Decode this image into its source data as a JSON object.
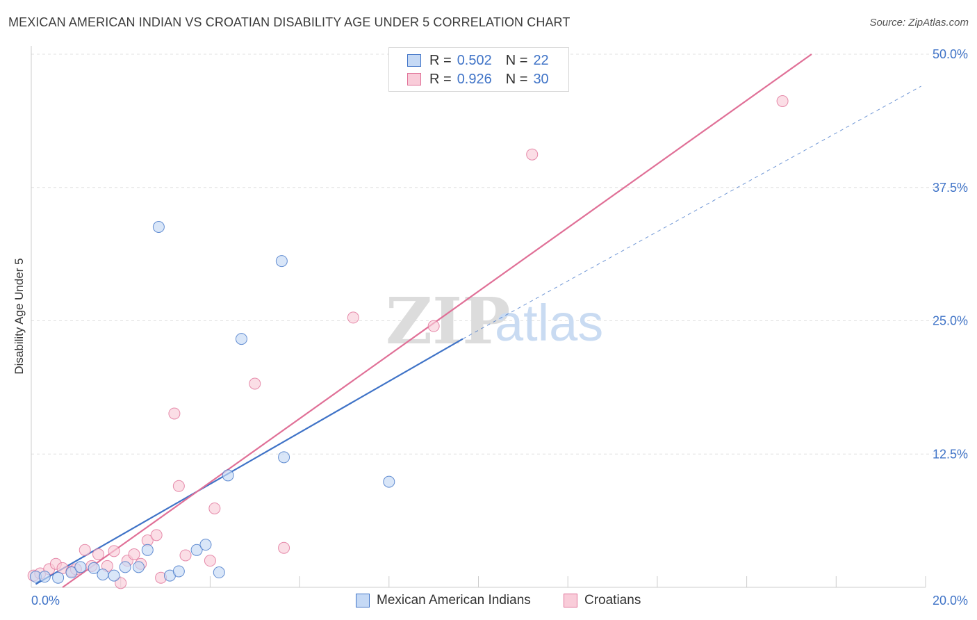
{
  "title": "MEXICAN AMERICAN INDIAN VS CROATIAN DISABILITY AGE UNDER 5 CORRELATION CHART",
  "source": "Source: ZipAtlas.com",
  "watermark": {
    "zip": "ZIP",
    "atlas": "atlas"
  },
  "colors": {
    "blue": "#3f73c7",
    "pink": "#e07097",
    "blue_fill": "#c5d9f5",
    "pink_fill": "#f9ccd9"
  },
  "legend_stats": {
    "rows": [
      {
        "r_label": "R =",
        "r_value": "0.502",
        "n_label": "N =",
        "n_value": "22"
      },
      {
        "r_label": "R =",
        "r_value": "0.926",
        "n_label": "N =",
        "n_value": "30"
      }
    ]
  },
  "legend": {
    "series_a": "Mexican American Indians",
    "series_b": "Croatians"
  },
  "chart_data": {
    "type": "scatter",
    "title": "MEXICAN AMERICAN INDIAN VS CROATIAN DISABILITY AGE UNDER 5 CORRELATION CHART",
    "xlabel": "",
    "ylabel": "Disability Age Under 5",
    "xlim": [
      0,
      20
    ],
    "ylim": [
      0,
      50
    ],
    "x_tick_labels": [
      "0.0%",
      "20.0%"
    ],
    "y_ticks": [
      12.5,
      25.0,
      37.5,
      50.0
    ],
    "y_tick_labels": [
      "12.5%",
      "25.0%",
      "37.5%",
      "50.0%"
    ],
    "series": [
      {
        "name": "Mexican American Indians",
        "r": 0.502,
        "n": 22,
        "points": [
          [
            0.1,
            1.0
          ],
          [
            0.3,
            1.0
          ],
          [
            0.6,
            0.9
          ],
          [
            0.9,
            1.4
          ],
          [
            1.1,
            1.9
          ],
          [
            1.4,
            1.8
          ],
          [
            1.6,
            1.2
          ],
          [
            1.85,
            1.1
          ],
          [
            2.1,
            1.9
          ],
          [
            2.4,
            1.9
          ],
          [
            2.6,
            3.5
          ],
          [
            2.85,
            33.8
          ],
          [
            3.1,
            1.1
          ],
          [
            3.3,
            1.5
          ],
          [
            3.7,
            3.5
          ],
          [
            3.9,
            4.0
          ],
          [
            4.2,
            1.4
          ],
          [
            4.4,
            10.5
          ],
          [
            4.7,
            23.3
          ],
          [
            5.6,
            30.6
          ],
          [
            5.65,
            12.2
          ],
          [
            8.0,
            9.9
          ]
        ],
        "trend_solid": [
          [
            0.1,
            0.3
          ],
          [
            9.65,
            23.3
          ]
        ],
        "trend_dashed": [
          [
            9.65,
            23.3
          ],
          [
            19.9,
            47.0
          ]
        ]
      },
      {
        "name": "Croatians",
        "r": 0.926,
        "n": 30,
        "points": [
          [
            0.05,
            1.1
          ],
          [
            0.2,
            1.3
          ],
          [
            0.4,
            1.7
          ],
          [
            0.55,
            2.2
          ],
          [
            0.7,
            1.8
          ],
          [
            0.9,
            1.5
          ],
          [
            1.0,
            1.7
          ],
          [
            1.2,
            3.5
          ],
          [
            1.35,
            2.0
          ],
          [
            1.5,
            3.1
          ],
          [
            1.7,
            2.0
          ],
          [
            1.85,
            3.4
          ],
          [
            2.0,
            0.4
          ],
          [
            2.15,
            2.5
          ],
          [
            2.3,
            3.1
          ],
          [
            2.45,
            2.2
          ],
          [
            2.6,
            4.4
          ],
          [
            2.8,
            4.9
          ],
          [
            2.9,
            0.9
          ],
          [
            3.2,
            16.3
          ],
          [
            3.3,
            9.5
          ],
          [
            3.45,
            3.0
          ],
          [
            4.0,
            2.5
          ],
          [
            4.1,
            7.4
          ],
          [
            5.0,
            19.1
          ],
          [
            5.65,
            3.7
          ],
          [
            7.2,
            25.3
          ],
          [
            9.0,
            24.5
          ],
          [
            11.2,
            40.6
          ],
          [
            16.8,
            45.6
          ]
        ],
        "trend_solid": [
          [
            0.7,
            0.0
          ],
          [
            17.45,
            50.0
          ]
        ]
      }
    ]
  }
}
